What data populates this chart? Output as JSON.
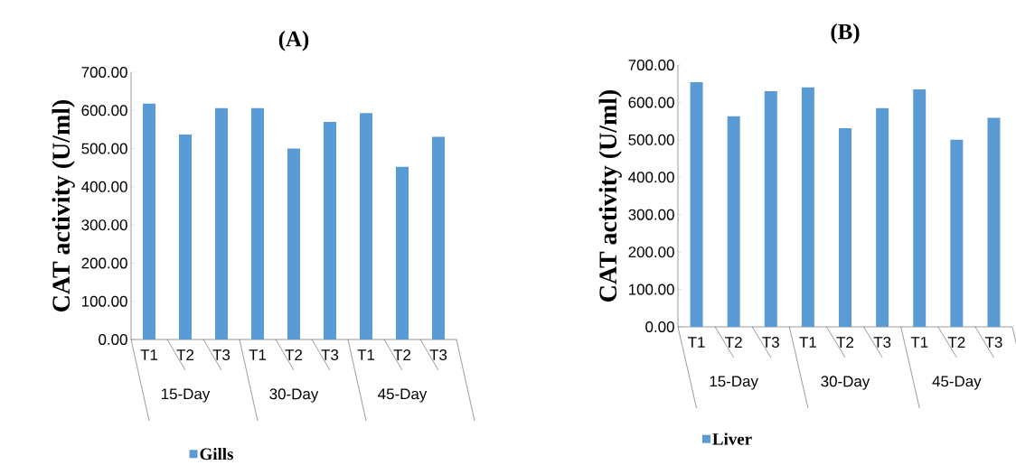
{
  "chart_data": [
    {
      "type": "bar",
      "title": "(A)",
      "ylabel": "CAT activity (U/ml)",
      "categories": [
        "T1",
        "T2",
        "T3",
        "T1",
        "T2",
        "T3",
        "T1",
        "T2",
        "T3"
      ],
      "series": [
        {
          "name": "Gills",
          "color": "#5b9bd5",
          "values": [
            618,
            537,
            606,
            606,
            500,
            570,
            593,
            452,
            531
          ]
        }
      ],
      "ylim": [
        0,
        700
      ],
      "yticks": [
        {
          "value": 0,
          "label": "0.00"
        },
        {
          "value": 100,
          "label": "100.00"
        },
        {
          "value": 200,
          "label": "200.00"
        },
        {
          "value": 300,
          "label": "300.00"
        },
        {
          "value": 400,
          "label": "400.00"
        },
        {
          "value": 500,
          "label": "500.00"
        },
        {
          "value": 600,
          "label": "600.00"
        },
        {
          "value": 700,
          "label": "700.00"
        }
      ],
      "annotations": [
        "15-Day",
        "30-Day",
        "45-Day"
      ],
      "legend": "bottom"
    },
    {
      "type": "bar",
      "title": "(B)",
      "ylabel": "CAT activity (U/ml)",
      "categories": [
        "T1",
        "T2",
        "T3",
        "T1",
        "T2",
        "T3",
        "T1",
        "T2",
        "T3"
      ],
      "series": [
        {
          "name": "Liver",
          "color": "#5b9bd5",
          "values": [
            654,
            563,
            630,
            640,
            531,
            585,
            635,
            500,
            559
          ]
        }
      ],
      "ylim": [
        0,
        700
      ],
      "yticks": [
        {
          "value": 0,
          "label": "0.00"
        },
        {
          "value": 100,
          "label": "100.00"
        },
        {
          "value": 200,
          "label": "200.00"
        },
        {
          "value": 300,
          "label": "300.00"
        },
        {
          "value": 400,
          "label": "400.00"
        },
        {
          "value": 500,
          "label": "500.00"
        },
        {
          "value": 600,
          "label": "600.00"
        },
        {
          "value": 700,
          "label": "700.00"
        }
      ],
      "annotations": [
        "15-Day",
        "30-Day",
        "45-Day"
      ],
      "legend": "bottom"
    }
  ]
}
